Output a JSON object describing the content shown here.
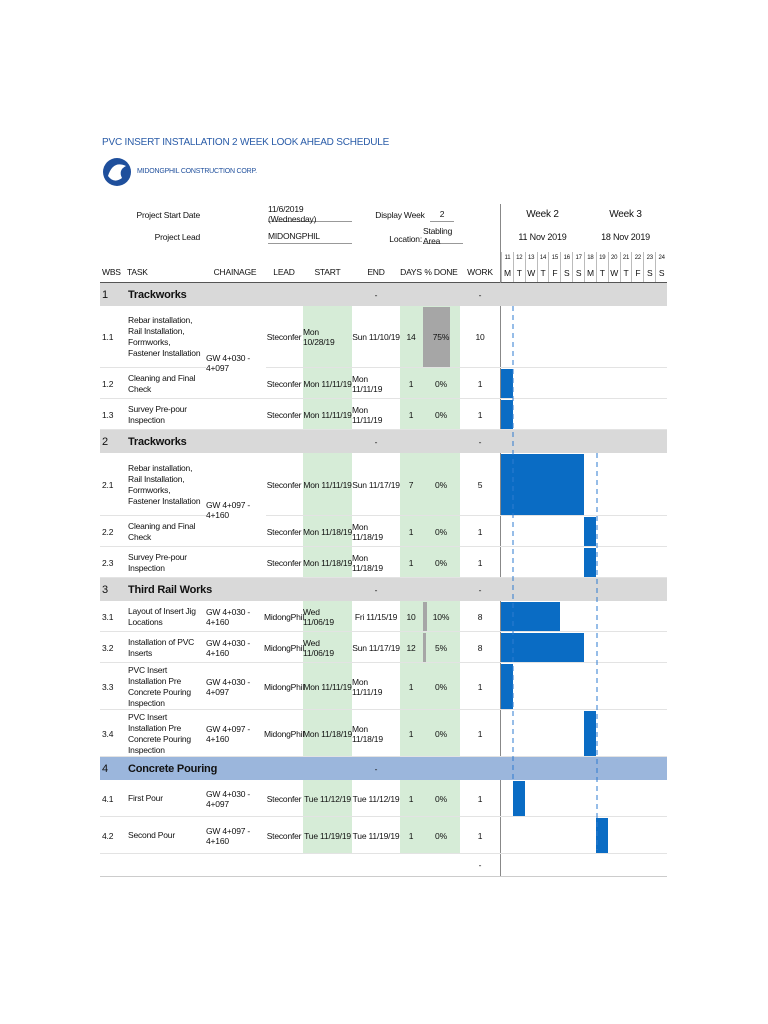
{
  "header": {
    "title": "PVC INSERT INSTALLATION 2 WEEK LOOK AHEAD SCHEDULE",
    "company": "MIDONGPHIL CONSTRUCTION CORP.",
    "start_label": "Project Start Date",
    "start_value": "11/6/2019 (Wednesday)",
    "display_week_label": "Display Week",
    "display_week_value": "2",
    "lead_label": "Project Lead",
    "lead_value": "MIDONGPHIL",
    "location_label": "Location:",
    "location_value": "Stabling Area"
  },
  "weeks": [
    {
      "label": "Week 2",
      "date": "11 Nov 2019"
    },
    {
      "label": "Week 3",
      "date": "18 Nov 2019"
    }
  ],
  "day_numbers": [
    "11",
    "12",
    "13",
    "14",
    "15",
    "16",
    "17",
    "18",
    "19",
    "20",
    "21",
    "22",
    "23",
    "24"
  ],
  "day_letters": [
    "M",
    "T",
    "W",
    "T",
    "F",
    "S",
    "S",
    "M",
    "T",
    "W",
    "T",
    "F",
    "S",
    "S"
  ],
  "columns": [
    "WBS",
    "TASK",
    "CHAINAGE",
    "LEAD",
    "START",
    "END",
    "DAYS",
    "% DONE",
    "WORK"
  ],
  "sections": [
    {
      "wbs": "1",
      "title": "Trackworks",
      "end": "-",
      "work": "-",
      "chainage": "GW 4+030 - 4+097",
      "rows": [
        {
          "wbs": "1.1",
          "task": "Rebar installation, Rail Installation, Formworks, Fastener Installation",
          "lead": "Steconfer",
          "start": "Mon 10/28/19",
          "end": "Sun 11/10/19",
          "days": "14",
          "done": "75%",
          "work": "10"
        },
        {
          "wbs": "1.2",
          "task": "Cleaning and Final Check",
          "lead": "Steconfer",
          "start": "Mon 11/11/19",
          "end": "Mon 11/11/19",
          "days": "1",
          "done": "0%",
          "work": "1"
        },
        {
          "wbs": "1.3",
          "task": "Survey Pre-pour Inspection",
          "lead": "Steconfer",
          "start": "Mon 11/11/19",
          "end": "Mon 11/11/19",
          "days": "1",
          "done": "0%",
          "work": "1"
        }
      ]
    },
    {
      "wbs": "2",
      "title": "Trackworks",
      "end": "-",
      "work": "-",
      "chainage": "GW 4+097 - 4+160",
      "rows": [
        {
          "wbs": "2.1",
          "task": "Rebar installation, Rail Installation, Formworks, Fastener Installation",
          "lead": "Steconfer",
          "start": "Mon 11/11/19",
          "end": "Sun 11/17/19",
          "days": "7",
          "done": "0%",
          "work": "5"
        },
        {
          "wbs": "2.2",
          "task": "Cleaning and Final Check",
          "lead": "Steconfer",
          "start": "Mon 11/18/19",
          "end": "Mon 11/18/19",
          "days": "1",
          "done": "0%",
          "work": "1"
        },
        {
          "wbs": "2.3",
          "task": "Survey Pre-pour Inspection",
          "lead": "Steconfer",
          "start": "Mon 11/18/19",
          "end": "Mon 11/18/19",
          "days": "1",
          "done": "0%",
          "work": "1"
        }
      ]
    },
    {
      "wbs": "3",
      "title": "Third Rail Works",
      "end": "-",
      "work": "-",
      "rows": [
        {
          "wbs": "3.1",
          "task": "Layout of Insert Jig Locations",
          "chainage": "GW 4+030 - 4+160",
          "lead": "MidongPhil",
          "start": "Wed 11/06/19",
          "end": "Fri 11/15/19",
          "days": "10",
          "done": "10%",
          "work": "8"
        },
        {
          "wbs": "3.2",
          "task": "Installation of PVC Inserts",
          "chainage": "GW 4+030 - 4+160",
          "lead": "MidongPhil",
          "start": "Wed 11/06/19",
          "end": "Sun 11/17/19",
          "days": "12",
          "done": "5%",
          "work": "8"
        },
        {
          "wbs": "3.3",
          "task": "PVC Insert Installation Pre Concrete Pouring Inspection",
          "chainage": "GW 4+030 - 4+097",
          "lead": "MidongPhil",
          "start": "Mon 11/11/19",
          "end": "Mon 11/11/19",
          "days": "1",
          "done": "0%",
          "work": "1"
        },
        {
          "wbs": "3.4",
          "task": "PVC Insert Installation Pre Concrete Pouring Inspection",
          "chainage": "GW 4+097 - 4+160",
          "lead": "MidongPhil",
          "start": "Mon 11/18/19",
          "end": "Mon 11/18/19",
          "days": "1",
          "done": "0%",
          "work": "1"
        }
      ]
    },
    {
      "wbs": "4",
      "title": "Concrete Pouring",
      "end": "-",
      "rows": [
        {
          "wbs": "4.1",
          "task": "First Pour",
          "chainage": "GW 4+030 - 4+097",
          "lead": "Steconfer",
          "start": "Tue 11/12/19",
          "end": "Tue 11/12/19",
          "days": "1",
          "done": "0%",
          "work": "1"
        },
        {
          "wbs": "4.2",
          "task": "Second Pour",
          "chainage": "GW 4+097 - 4+160",
          "lead": "Steconfer",
          "start": "Tue 11/19/19",
          "end": "Tue 11/19/19",
          "days": "1",
          "done": "0%",
          "work": "1"
        }
      ]
    }
  ],
  "footer_work": "-"
}
